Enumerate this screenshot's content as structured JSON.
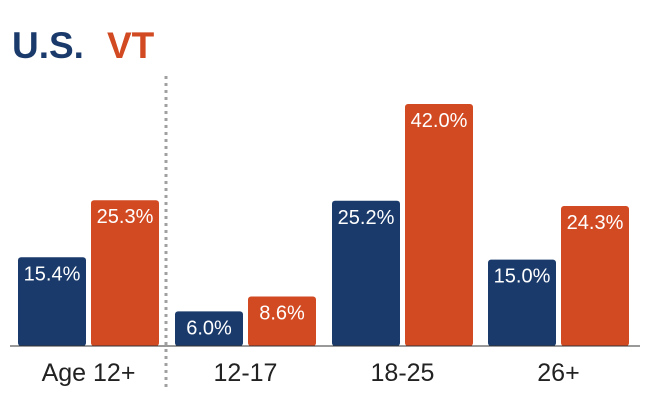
{
  "chart_data": {
    "type": "bar",
    "title": "",
    "xlabel": "",
    "ylabel": "",
    "ylim": [
      0,
      44
    ],
    "grid": false,
    "legend_position": "top-left",
    "categories": [
      "Age 12+",
      "12-17",
      "18-25",
      "26+"
    ],
    "series": [
      {
        "name": "U.S.",
        "color": "#1a3a6b",
        "values": [
          15.4,
          6.0,
          25.2,
          15.0
        ],
        "labels": [
          "15.4%",
          "6.0%",
          "25.2%",
          "15.0%"
        ]
      },
      {
        "name": "VT",
        "color": "#d24a22",
        "values": [
          25.3,
          8.6,
          42.0,
          24.3
        ],
        "labels": [
          "25.3%",
          "8.6%",
          "42.0%",
          "24.3%"
        ]
      }
    ],
    "separator_after_category": 0
  }
}
